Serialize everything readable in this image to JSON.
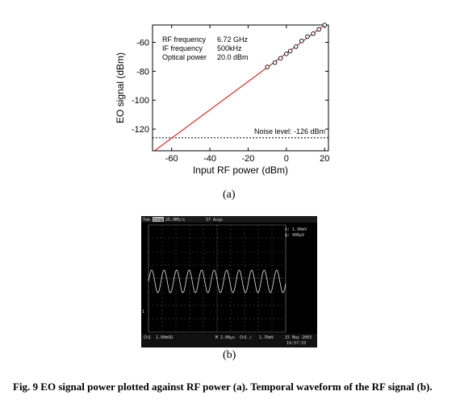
{
  "chart_data": {
    "type": "line",
    "xlabel": "Input RF power (dBm)",
    "ylabel": "EO signal (dBm)",
    "xlim": [
      -70,
      22
    ],
    "ylim": [
      -135,
      -48
    ],
    "xticks": [
      -60,
      -40,
      -20,
      0,
      20
    ],
    "yticks": [
      -120,
      -100,
      -80,
      -60
    ],
    "fit_line": {
      "color": "#e00000",
      "points": [
        [
          -70,
          -136
        ],
        [
          20,
          -48
        ]
      ]
    },
    "measured": {
      "marker": "open-circle",
      "x": [
        -10,
        -6,
        -3,
        0,
        2,
        5,
        8,
        11,
        14,
        17,
        20
      ],
      "y": [
        -77,
        -74,
        -71,
        -68,
        -66,
        -63,
        -59,
        -56,
        -54,
        -51,
        -48
      ]
    },
    "noise_level": {
      "y": -126,
      "style": "dashed",
      "label": "Noise level: -126 dBm"
    },
    "annotations": [
      {
        "key": "RF frequency",
        "value": "6.72 GHz"
      },
      {
        "key": "IF frequency",
        "value": "500kHz"
      },
      {
        "key": "Optical power",
        "value": "20.0 dBm"
      }
    ],
    "grid": false
  },
  "captions": {
    "a": "(a)",
    "b": "(b)"
  },
  "scope": {
    "top_left": "Tek",
    "top_mode": "Stop",
    "top_rate": "25.0MS/s",
    "top_acqs": "57 Acqs",
    "readout_1": "A: 1.90mV",
    "readout_2": "@: 900μV",
    "ch_marker": "1",
    "bottom_ch": "Ch1",
    "bottom_scale": "1.00mVΩ",
    "bottom_time": "M 2.00μs",
    "bottom_trig": "Ch1 ∕",
    "bottom_level": "1.76mV",
    "date": "15 May 2003",
    "time": "19:57:33"
  },
  "figure_caption": "Fig. 9     EO signal power plotted against RF power (a).    Temporal waveform of the RF signal (b)."
}
